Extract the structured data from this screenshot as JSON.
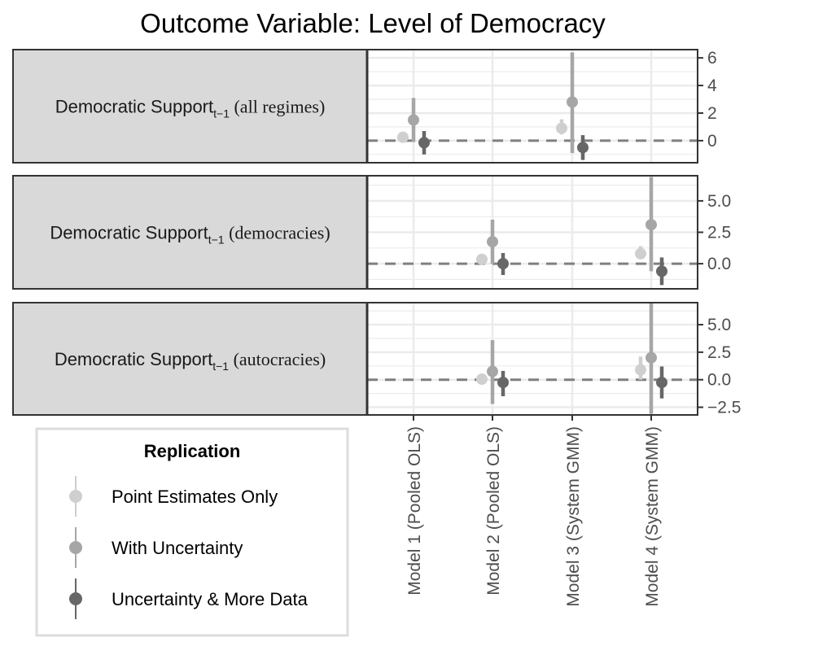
{
  "title": "Outcome Variable: Level of Democracy",
  "colors": {
    "point_only": "#cfcfcf",
    "uncertainty": "#a6a6a6",
    "more_data": "#676767",
    "strip_bg": "#d9d9d9",
    "grid": "#ebebeb",
    "zero_line": "#7f7f7f"
  },
  "legend": {
    "title": "Replication",
    "items": [
      "Point Estimates Only",
      "With Uncertainty",
      "Uncertainty & More Data"
    ]
  },
  "chart_data": {
    "type": "scatter",
    "x_categories": [
      "Model 1 (Pooled OLS)",
      "Model 2 (Pooled OLS)",
      "Model 3 (System GMM)",
      "Model 4 (System GMM)"
    ],
    "series_names": [
      "Point Estimates Only",
      "With Uncertainty",
      "Uncertainty & More Data"
    ],
    "panels": [
      {
        "strip_main": "Democratic Support",
        "strip_sub": "t−1",
        "strip_paren": "(all regimes)",
        "ylim": [
          -1.6,
          6.6
        ],
        "y_ticks": [
          0,
          2,
          4,
          6
        ],
        "y_tick_labels": [
          "0",
          "2",
          "4",
          "6"
        ],
        "points": [
          {
            "model": 0,
            "series": 0,
            "y": 0.25,
            "lo": 0.25,
            "hi": 0.25
          },
          {
            "model": 0,
            "series": 1,
            "y": 1.5,
            "lo": -0.1,
            "hi": 3.1
          },
          {
            "model": 0,
            "series": 2,
            "y": -0.15,
            "lo": -1.0,
            "hi": 0.7
          },
          {
            "model": 2,
            "series": 0,
            "y": 0.9,
            "lo": 0.45,
            "hi": 1.55
          },
          {
            "model": 2,
            "series": 1,
            "y": 2.8,
            "lo": -0.9,
            "hi": 6.4
          },
          {
            "model": 2,
            "series": 2,
            "y": -0.5,
            "lo": -1.4,
            "hi": 0.4
          }
        ]
      },
      {
        "strip_main": "Democratic Support",
        "strip_sub": "t−1",
        "strip_paren": "(democracies)",
        "ylim": [
          -2.0,
          7.0
        ],
        "y_ticks": [
          0,
          2.5,
          5
        ],
        "y_tick_labels": [
          "0.0",
          "2.5",
          "5.0"
        ],
        "points": [
          {
            "model": 1,
            "series": 0,
            "y": 0.35,
            "lo": 0.35,
            "hi": 0.35
          },
          {
            "model": 1,
            "series": 1,
            "y": 1.75,
            "lo": 0.0,
            "hi": 3.5
          },
          {
            "model": 1,
            "series": 2,
            "y": 0.0,
            "lo": -0.9,
            "hi": 0.85
          },
          {
            "model": 3,
            "series": 0,
            "y": 0.8,
            "lo": 0.35,
            "hi": 1.4
          },
          {
            "model": 3,
            "series": 1,
            "y": 3.1,
            "lo": -0.6,
            "hi": 6.9
          },
          {
            "model": 3,
            "series": 2,
            "y": -0.6,
            "lo": -1.7,
            "hi": 0.5
          }
        ]
      },
      {
        "strip_main": "Democratic Support",
        "strip_sub": "t−1",
        "strip_paren": "(autocracies)",
        "ylim": [
          -3.2,
          7.0
        ],
        "y_ticks": [
          -2.5,
          0,
          2.5,
          5
        ],
        "y_tick_labels": [
          "−2.5",
          "0.0",
          "2.5",
          "5.0"
        ],
        "points": [
          {
            "model": 1,
            "series": 0,
            "y": 0.05,
            "lo": 0.05,
            "hi": 0.05
          },
          {
            "model": 1,
            "series": 1,
            "y": 0.75,
            "lo": -2.2,
            "hi": 3.6
          },
          {
            "model": 1,
            "series": 2,
            "y": -0.25,
            "lo": -1.5,
            "hi": 0.8
          },
          {
            "model": 3,
            "series": 0,
            "y": 0.9,
            "lo": 0.0,
            "hi": 2.1
          },
          {
            "model": 3,
            "series": 1,
            "y": 2.0,
            "lo": -3.1,
            "hi": 7.0
          },
          {
            "model": 3,
            "series": 2,
            "y": -0.25,
            "lo": -1.7,
            "hi": 1.2
          }
        ]
      }
    ],
    "grid": true,
    "reference_line": 0,
    "legend_position": "bottom-left"
  }
}
